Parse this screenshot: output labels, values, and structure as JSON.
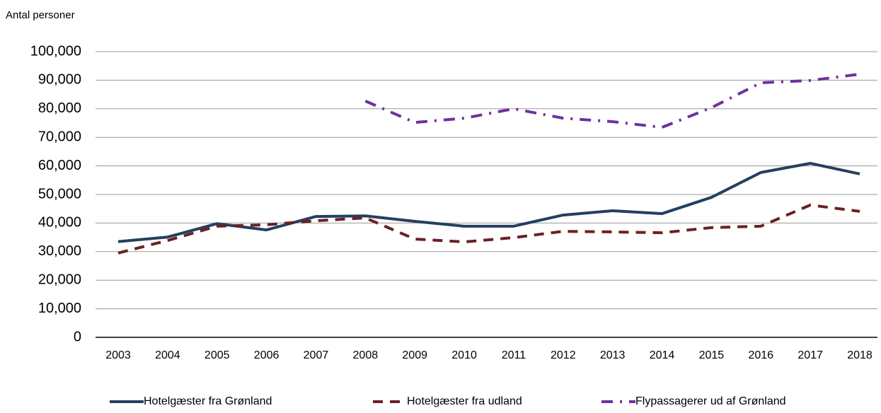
{
  "chart_data": {
    "type": "line",
    "y_axis_title": "Antal personer",
    "categories": [
      "2003",
      "2004",
      "2005",
      "2006",
      "2007",
      "2008",
      "2009",
      "2010",
      "2011",
      "2012",
      "2013",
      "2014",
      "2015",
      "2016",
      "2017",
      "2018"
    ],
    "series": [
      {
        "name": "Hotelgæster fra Grønland",
        "color": "#243f60",
        "dash": "solid",
        "values": [
          33500,
          35100,
          39800,
          37600,
          42300,
          42500,
          40600,
          38900,
          38900,
          42800,
          44300,
          43300,
          49000,
          57700,
          60900,
          57200
        ]
      },
      {
        "name": "Hotelgæster fra udland",
        "color": "#6b2022",
        "dash": "dash",
        "values": [
          29500,
          33900,
          38900,
          39400,
          40800,
          41800,
          34400,
          33400,
          34900,
          37100,
          36900,
          36600,
          38400,
          38900,
          46300,
          44100
        ]
      },
      {
        "name": "Flypassagerer ud af Grønland",
        "color": "#7030a0",
        "dash": "dashdot",
        "values": [
          null,
          null,
          null,
          null,
          null,
          82700,
          75200,
          76700,
          80000,
          76700,
          75500,
          73500,
          80400,
          89100,
          89900,
          92100
        ]
      }
    ],
    "ylim": [
      0,
      100000
    ],
    "yticks": [
      0,
      {
        "value": 10000,
        "label": "10,000"
      },
      {
        "value": 20000,
        "label": "20,000"
      },
      {
        "value": 30000,
        "label": "30,000"
      },
      {
        "value": 40000,
        "label": "40,000"
      },
      {
        "value": 50000,
        "label": "50,000"
      },
      {
        "value": 60000,
        "label": "60,000"
      },
      {
        "value": 70000,
        "label": "70,000"
      },
      {
        "value": 80000,
        "label": "80,000"
      },
      {
        "value": 90000,
        "label": "90,000"
      },
      {
        "value": 100000,
        "label": "100,000"
      }
    ],
    "grid": true,
    "legend": "bottom"
  }
}
